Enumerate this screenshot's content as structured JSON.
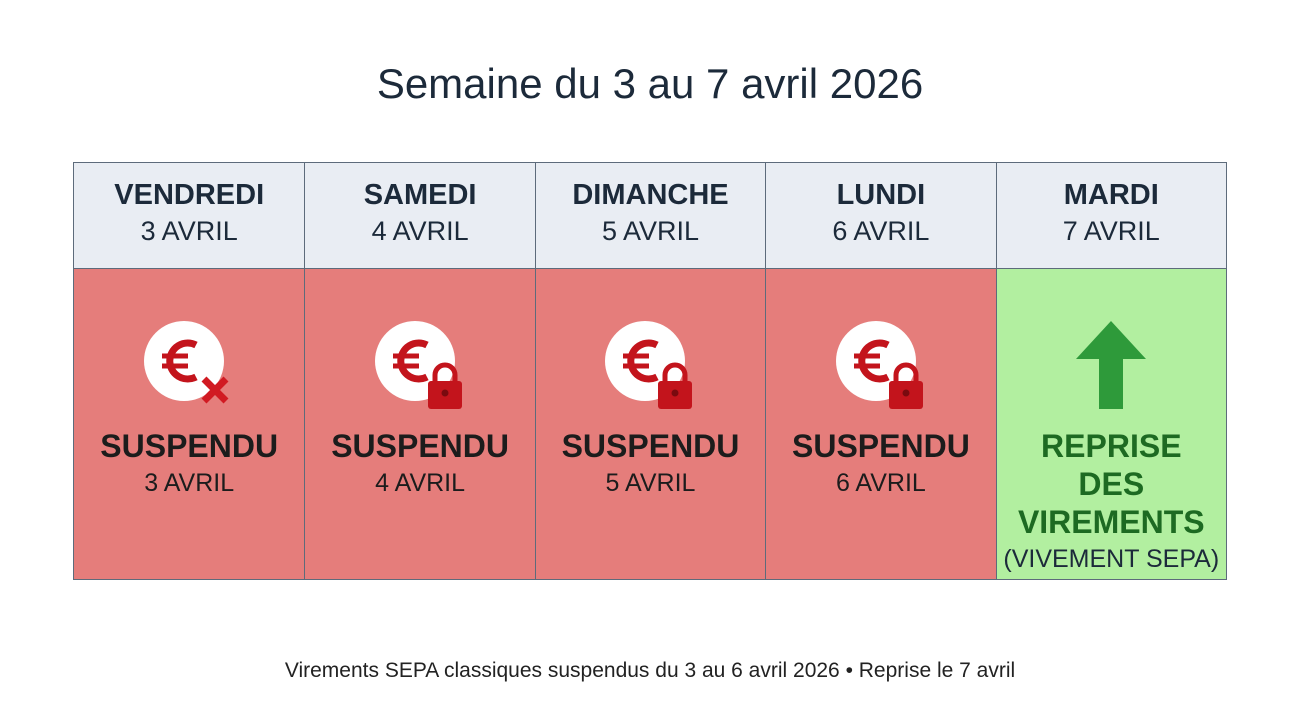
{
  "title": "Semaine du 3 au 7 avril 2026",
  "days": [
    {
      "day": "VENDREDI",
      "date": "3 AVRIL",
      "status": "SUSPENDU",
      "detail": "3 AVRIL"
    },
    {
      "day": "SAMEDI",
      "date": "4 AVRIL",
      "status": "SUSPENDU",
      "detail": "4 AVRIL"
    },
    {
      "day": "DIMANCHE",
      "date": "5 AVRIL",
      "status": "SUSPENDU",
      "detail": "5 AVRIL"
    },
    {
      "day": "LUNDI",
      "date": "6 AVRIL",
      "status": "SUSPENDU",
      "detail": "6 AVRIL"
    },
    {
      "day": "MARDI",
      "date": "7 AVRIL",
      "status": "REPRISE DES VIREMENTS",
      "detail": "(VIVEMENT SEPA)"
    }
  ],
  "footer": "Virements SEPA classiques suspendus du 3 au 6 avril 2026 • Reprise le 7 avril"
}
